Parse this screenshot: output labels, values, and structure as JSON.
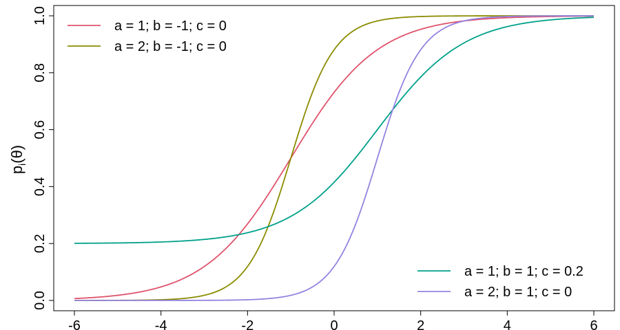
{
  "chart_data": {
    "type": "line",
    "ylabel": "p",
    "ylabel_subscript": "i",
    "ylabel_suffix": "(θ)",
    "xlim": [
      -6,
      6
    ],
    "ylim": [
      0,
      1
    ],
    "x_ticks": [
      -6,
      -4,
      -2,
      0,
      2,
      4,
      6
    ],
    "x_tick_labels": [
      "-6",
      "-4",
      "-2",
      "0",
      "2",
      "4",
      "6"
    ],
    "y_ticks": [
      0,
      0.2,
      0.4,
      0.6,
      0.8,
      1
    ],
    "y_tick_labels": [
      "0.0",
      "0.2",
      "0.4",
      "0.6",
      "0.8",
      "1.0"
    ],
    "grid": false,
    "legend_groups": [
      {
        "placement": "top-left",
        "series_indices": [
          0,
          1
        ]
      },
      {
        "placement": "bottom-right",
        "series_indices": [
          2,
          3
        ]
      }
    ],
    "x": [
      -6,
      -5.5,
      -5,
      -4.5,
      -4,
      -3.5,
      -3,
      -2.5,
      -2,
      -1.5,
      -1,
      -0.5,
      0,
      0.5,
      1,
      1.5,
      2,
      2.5,
      3,
      3.5,
      4,
      4.5,
      5,
      5.5,
      6
    ],
    "series": [
      {
        "name": "a = 1; b = -1; c = 0",
        "a": 1,
        "b": -1,
        "c": 0,
        "color": "#DF536B",
        "values": [
          0.0067,
          0.011,
          0.018,
          0.029,
          0.047,
          0.076,
          0.119,
          0.182,
          0.269,
          0.378,
          0.5,
          0.622,
          0.731,
          0.818,
          0.881,
          0.924,
          0.953,
          0.971,
          0.982,
          0.989,
          0.993,
          0.996,
          0.998,
          0.998,
          0.999
        ]
      },
      {
        "name": "a = 2; b = -1; c = 0",
        "a": 2,
        "b": -1,
        "c": 0,
        "color": "#8B8B00",
        "values": [
          0.0,
          0.0001,
          0.0003,
          0.0009,
          0.0025,
          0.0067,
          0.018,
          0.047,
          0.119,
          0.269,
          0.5,
          0.731,
          0.881,
          0.953,
          0.982,
          0.993,
          0.998,
          0.999,
          1.0,
          1.0,
          1.0,
          1.0,
          1.0,
          1.0,
          1.0
        ]
      },
      {
        "name": "a = 1; b = 1; c = 0.2",
        "a": 1,
        "b": 1,
        "c": 0.2,
        "color": "#00A08A",
        "values": [
          0.2007,
          0.2012,
          0.202,
          0.2033,
          0.2054,
          0.2089,
          0.2144,
          0.2237,
          0.2381,
          0.2602,
          0.293,
          0.3395,
          0.4151,
          0.4862,
          0.6,
          0.6969,
          0.7849,
          0.8544,
          0.9047,
          0.9377,
          0.962,
          0.9766,
          0.9856,
          0.9911,
          0.9947
        ]
      },
      {
        "name": "a = 2; b = 1; c = 0",
        "a": 2,
        "b": 1,
        "c": 0,
        "color": "#9483E0",
        "values": [
          0.0,
          0.0,
          0.0,
          0.0,
          0.0,
          0.0,
          0.0003,
          0.0009,
          0.0025,
          0.0067,
          0.018,
          0.047,
          0.119,
          0.269,
          0.5,
          0.731,
          0.881,
          0.953,
          0.982,
          0.993,
          0.998,
          0.999,
          1.0,
          1.0,
          1.0
        ]
      }
    ]
  }
}
